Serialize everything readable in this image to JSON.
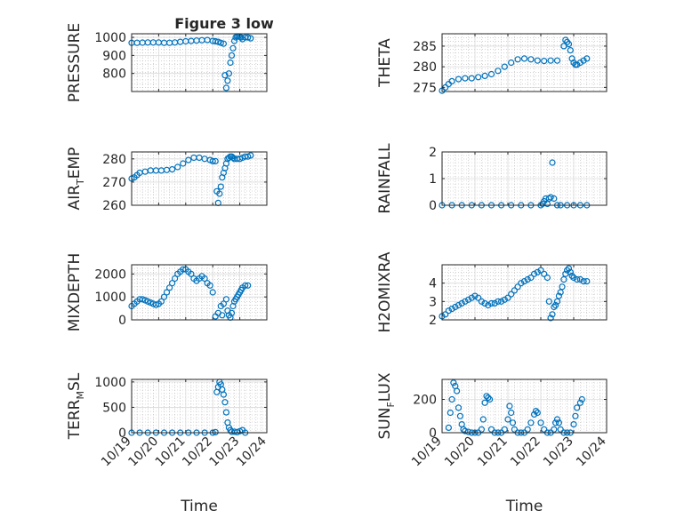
{
  "figure": {
    "title": "Figure 3 low",
    "marker_color": "#0072BD",
    "axis_color": "#262626",
    "grid_color": "#b8b8b8"
  },
  "chart_data": [
    {
      "type": "scatter",
      "name": "pressure",
      "ylabel": "PRESSURE",
      "ylabel_sub": "",
      "xlabel": "",
      "xlim": [
        0,
        5
      ],
      "ylim": [
        700,
        1020
      ],
      "yticks": [
        800,
        900,
        1000
      ],
      "xticks": [],
      "xticklabels": [],
      "grid": true,
      "minor_grid": true,
      "x": [
        0.0,
        0.2,
        0.4,
        0.6,
        0.8,
        1.0,
        1.2,
        1.4,
        1.6,
        1.8,
        2.0,
        2.2,
        2.4,
        2.6,
        2.8,
        3.0,
        3.1,
        3.2,
        3.3,
        3.4,
        3.45,
        3.5,
        3.55,
        3.6,
        3.65,
        3.7,
        3.75,
        3.8,
        3.85,
        3.9,
        3.95,
        4.0,
        4.05,
        4.1,
        4.2,
        4.3,
        4.4
      ],
      "y": [
        970,
        970,
        971,
        972,
        972,
        972,
        970,
        970,
        972,
        975,
        978,
        980,
        982,
        984,
        985,
        980,
        978,
        975,
        970,
        965,
        790,
        720,
        760,
        800,
        860,
        900,
        940,
        980,
        1000,
        1005,
        1005,
        1003,
        1000,
        990,
        1000,
        1000,
        995
      ]
    },
    {
      "type": "scatter",
      "name": "theta",
      "ylabel": "THETA",
      "ylabel_sub": "",
      "xlabel": "",
      "xlim": [
        0,
        5
      ],
      "ylim": [
        274,
        288
      ],
      "yticks": [
        275,
        280,
        285
      ],
      "xticks": [],
      "xticklabels": [],
      "grid": true,
      "minor_grid": true,
      "x": [
        0.0,
        0.1,
        0.2,
        0.3,
        0.5,
        0.7,
        0.9,
        1.1,
        1.3,
        1.5,
        1.7,
        1.9,
        2.1,
        2.3,
        2.5,
        2.7,
        2.9,
        3.1,
        3.3,
        3.5,
        3.7,
        3.75,
        3.8,
        3.85,
        3.9,
        3.95,
        4.0,
        4.05,
        4.1,
        4.2,
        4.3,
        4.4
      ],
      "y": [
        274.2,
        275,
        275.8,
        276.5,
        277,
        277.2,
        277.2,
        277.5,
        277.8,
        278.2,
        279,
        280,
        281,
        281.8,
        282,
        281.8,
        281.5,
        281.4,
        281.5,
        281.5,
        285,
        286.5,
        286,
        285.5,
        284,
        282,
        281,
        280.5,
        280.5,
        281,
        281.5,
        282
      ]
    },
    {
      "type": "scatter",
      "name": "air_temp",
      "ylabel": "AIR",
      "ylabel_sub": "T",
      "ylabel_suffix": "EMP",
      "xlabel": "",
      "xlim": [
        0,
        5
      ],
      "ylim": [
        260,
        283
      ],
      "yticks": [
        260,
        270,
        280
      ],
      "xticks": [],
      "xticklabels": [],
      "grid": true,
      "minor_grid": true,
      "x": [
        0.0,
        0.1,
        0.2,
        0.3,
        0.5,
        0.7,
        0.9,
        1.1,
        1.3,
        1.5,
        1.7,
        1.9,
        2.1,
        2.3,
        2.5,
        2.7,
        2.9,
        3.0,
        3.1,
        3.15,
        3.2,
        3.25,
        3.3,
        3.35,
        3.4,
        3.45,
        3.5,
        3.55,
        3.6,
        3.65,
        3.7,
        3.75,
        3.8,
        3.9,
        4.0,
        4.1,
        4.2,
        4.3,
        4.4
      ],
      "y": [
        271.5,
        272,
        273,
        274,
        274.5,
        275,
        275,
        275,
        275.2,
        275.5,
        276.5,
        278,
        279.5,
        280.5,
        280.5,
        280,
        279.5,
        279,
        279,
        266,
        261,
        265,
        268,
        272,
        274,
        276,
        278,
        280,
        280.5,
        281,
        281,
        280.5,
        280,
        280,
        280,
        280.5,
        281,
        281,
        281.5
      ]
    },
    {
      "type": "scatter",
      "name": "rainfall",
      "ylabel": "RAINFALL",
      "ylabel_sub": "",
      "xlabel": "",
      "xlim": [
        0,
        5
      ],
      "ylim": [
        0,
        2
      ],
      "yticks": [
        0,
        1,
        2
      ],
      "xticks": [],
      "xticklabels": [],
      "grid": true,
      "minor_grid": true,
      "x": [
        0.0,
        0.3,
        0.6,
        0.9,
        1.2,
        1.5,
        1.8,
        2.1,
        2.4,
        2.7,
        3.0,
        3.05,
        3.1,
        3.15,
        3.2,
        3.25,
        3.3,
        3.35,
        3.4,
        3.5,
        3.6,
        3.8,
        4.0,
        4.2,
        4.4
      ],
      "y": [
        0,
        0,
        0,
        0,
        0,
        0,
        0,
        0,
        0,
        0,
        0,
        0.05,
        0.15,
        0.25,
        0.05,
        0.25,
        0.3,
        1.6,
        0.25,
        0,
        0,
        0,
        0,
        0,
        0
      ]
    },
    {
      "type": "scatter",
      "name": "mixdepth",
      "ylabel": "MIXDEPTH",
      "ylabel_sub": "",
      "xlabel": "",
      "xlim": [
        0,
        5
      ],
      "ylim": [
        0,
        2400
      ],
      "yticks": [
        0,
        1000,
        2000
      ],
      "xticks": [],
      "xticklabels": [],
      "grid": true,
      "minor_grid": true,
      "x": [
        0.0,
        0.1,
        0.2,
        0.3,
        0.4,
        0.5,
        0.6,
        0.7,
        0.8,
        0.9,
        1.0,
        1.1,
        1.2,
        1.3,
        1.4,
        1.5,
        1.6,
        1.7,
        1.8,
        1.9,
        2.0,
        2.1,
        2.2,
        2.3,
        2.4,
        2.5,
        2.6,
        2.7,
        2.8,
        2.9,
        3.0,
        3.1,
        3.2,
        3.3,
        3.35,
        3.4,
        3.5,
        3.55,
        3.6,
        3.65,
        3.7,
        3.75,
        3.8,
        3.85,
        3.9,
        3.95,
        4.0,
        4.05,
        4.1,
        4.2,
        4.3
      ],
      "y": [
        600,
        700,
        800,
        900,
        900,
        850,
        800,
        750,
        700,
        650,
        700,
        800,
        1000,
        1200,
        1400,
        1600,
        1800,
        2000,
        2100,
        2200,
        2200,
        2100,
        2000,
        1800,
        1700,
        1800,
        1900,
        1800,
        1600,
        1500,
        1200,
        150,
        300,
        600,
        200,
        700,
        900,
        400,
        200,
        100,
        300,
        600,
        800,
        900,
        1000,
        1100,
        1200,
        1300,
        1400,
        1500,
        1500
      ]
    },
    {
      "type": "scatter",
      "name": "h2omixra",
      "ylabel": "H2OMIXRA",
      "ylabel_sub": "",
      "xlabel": "",
      "xlim": [
        0,
        5
      ],
      "ylim": [
        2,
        5
      ],
      "yticks": [
        2,
        3,
        4
      ],
      "xticks": [],
      "xticklabels": [],
      "grid": true,
      "minor_grid": true,
      "x": [
        0.0,
        0.1,
        0.2,
        0.3,
        0.4,
        0.5,
        0.6,
        0.7,
        0.8,
        0.9,
        1.0,
        1.1,
        1.2,
        1.3,
        1.4,
        1.5,
        1.6,
        1.7,
        1.8,
        1.9,
        2.0,
        2.1,
        2.2,
        2.3,
        2.4,
        2.5,
        2.6,
        2.7,
        2.8,
        2.9,
        3.0,
        3.1,
        3.2,
        3.25,
        3.3,
        3.35,
        3.4,
        3.45,
        3.5,
        3.55,
        3.6,
        3.65,
        3.7,
        3.75,
        3.8,
        3.85,
        3.9,
        3.95,
        4.0,
        4.1,
        4.2,
        4.3,
        4.4
      ],
      "y": [
        2.2,
        2.3,
        2.5,
        2.6,
        2.7,
        2.8,
        2.9,
        3.0,
        3.1,
        3.2,
        3.3,
        3.2,
        3.0,
        2.9,
        2.8,
        2.9,
        2.9,
        3.0,
        3.0,
        3.1,
        3.2,
        3.4,
        3.6,
        3.8,
        4.0,
        4.1,
        4.2,
        4.3,
        4.5,
        4.6,
        4.7,
        4.5,
        4.3,
        3.0,
        2.1,
        2.3,
        2.7,
        2.8,
        3.0,
        3.3,
        3.5,
        3.8,
        4.2,
        4.5,
        4.7,
        4.8,
        4.6,
        4.4,
        4.3,
        4.2,
        4.2,
        4.1,
        4.1
      ]
    },
    {
      "type": "scatter",
      "name": "terr_msl",
      "ylabel": "TERR",
      "ylabel_sub": "M",
      "ylabel_suffix": "SL",
      "xlabel": "Time",
      "xlim": [
        0,
        5
      ],
      "ylim": [
        0,
        1050
      ],
      "yticks": [
        0,
        500,
        1000
      ],
      "xticks": [
        0,
        1,
        2,
        3,
        4,
        5
      ],
      "xticklabels": [
        "10/19",
        "10/20",
        "10/21",
        "10/22",
        "10/23",
        "10/24"
      ],
      "grid": true,
      "minor_grid": true,
      "x": [
        0.0,
        0.3,
        0.6,
        0.9,
        1.2,
        1.5,
        1.8,
        2.1,
        2.4,
        2.7,
        3.0,
        3.1,
        3.15,
        3.2,
        3.25,
        3.3,
        3.35,
        3.4,
        3.45,
        3.5,
        3.55,
        3.6,
        3.65,
        3.7,
        3.8,
        3.9,
        4.0,
        4.1,
        4.2
      ],
      "y": [
        0,
        0,
        0,
        0,
        0,
        0,
        0,
        0,
        0,
        0,
        0,
        10,
        800,
        900,
        1000,
        950,
        850,
        750,
        600,
        400,
        200,
        100,
        50,
        20,
        20,
        10,
        30,
        50,
        0
      ]
    },
    {
      "type": "scatter",
      "name": "sun_flux",
      "ylabel": "SUN",
      "ylabel_sub": "F",
      "ylabel_suffix": "LUX",
      "xlabel": "Time",
      "xlim": [
        0,
        5
      ],
      "ylim": [
        0,
        320
      ],
      "yticks": [
        0,
        200
      ],
      "xticks": [
        0,
        1,
        2,
        3,
        4,
        5
      ],
      "xticklabels": [
        "10/19",
        "10/20",
        "10/21",
        "10/22",
        "10/23",
        "10/24"
      ],
      "grid": true,
      "minor_grid": true,
      "x": [
        0.2,
        0.25,
        0.3,
        0.35,
        0.4,
        0.45,
        0.5,
        0.55,
        0.6,
        0.65,
        0.7,
        0.8,
        0.9,
        1.0,
        1.1,
        1.2,
        1.25,
        1.3,
        1.35,
        1.4,
        1.45,
        1.5,
        1.6,
        1.7,
        1.8,
        1.9,
        2.0,
        2.05,
        2.1,
        2.15,
        2.2,
        2.3,
        2.4,
        2.5,
        2.6,
        2.7,
        2.8,
        2.85,
        2.9,
        3.0,
        3.1,
        3.2,
        3.3,
        3.4,
        3.45,
        3.5,
        3.55,
        3.6,
        3.7,
        3.8,
        3.9,
        4.0,
        4.05,
        4.1,
        4.2,
        4.25
      ],
      "y": [
        30,
        120,
        200,
        300,
        280,
        250,
        150,
        100,
        50,
        20,
        10,
        5,
        0,
        0,
        0,
        20,
        80,
        180,
        220,
        210,
        200,
        20,
        0,
        0,
        0,
        20,
        80,
        160,
        120,
        60,
        20,
        0,
        0,
        0,
        20,
        60,
        110,
        130,
        120,
        60,
        20,
        0,
        0,
        20,
        60,
        80,
        60,
        20,
        0,
        0,
        0,
        50,
        100,
        150,
        180,
        200
      ]
    }
  ]
}
